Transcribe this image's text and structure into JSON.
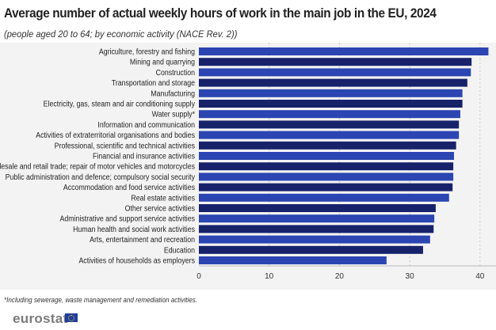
{
  "chart_data": {
    "type": "bar",
    "orientation": "horizontal",
    "title": "Average number of actual weekly hours of work in the main job in the EU, 2024",
    "subtitle": "(people aged 20 to 64; by economic activity (NACE Rev. 2))",
    "categories": [
      "Agriculture, forestry and fishing",
      "Mining and quarrying",
      "Construction",
      "Transportation and storage",
      "Manufacturing",
      "Electricity, gas, steam and air conditioning supply",
      "Water supply*",
      "Information and communication",
      "Activities of extraterritorial organisations and bodies",
      "Professional, scientific and technical activities",
      "Financial and insurance activities",
      "Wholesale and retail trade; repair of motor vehicles and motorcycles",
      "Public administration and defence; compulsory social security",
      "Accommodation and food service activities",
      "Real estate activities",
      "Other service activities",
      "Administrative and support service activities",
      "Human health and social work activities",
      "Arts, entertainment and recreation",
      "Education",
      "Activities of households as employers"
    ],
    "values": [
      41.2,
      38.8,
      38.7,
      38.2,
      37.5,
      37.5,
      37.2,
      37.0,
      37.0,
      36.6,
      36.3,
      36.2,
      36.2,
      36.1,
      35.6,
      33.7,
      33.5,
      33.4,
      32.9,
      31.9,
      26.7
    ],
    "xlim": [
      0,
      42
    ],
    "xticks": [
      0,
      10,
      20,
      30,
      40
    ],
    "grid": true,
    "colors": {
      "light": "#2b45b2",
      "dark": "#17226b",
      "grid": "#c8c8c8"
    }
  },
  "footnote": "*Including sewerage, waste management and remediation activities.",
  "logo": "eurostat"
}
